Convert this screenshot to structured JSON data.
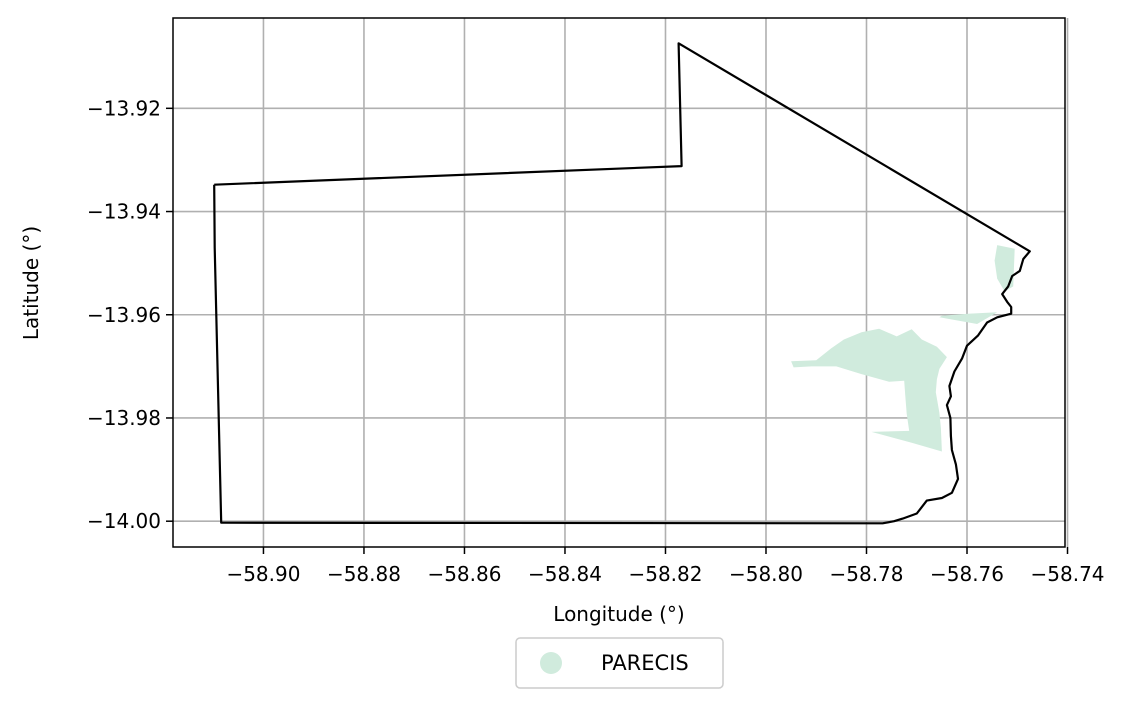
{
  "chart_data": {
    "type": "map",
    "xlabel": "Longitude (°)",
    "ylabel": "Latitude (°)",
    "xlim": [
      -58.918,
      -58.7405
    ],
    "ylim": [
      -14.005,
      -13.9025
    ],
    "grid": true,
    "x_ticks": [
      -58.9,
      -58.88,
      -58.86,
      -58.84,
      -58.82,
      -58.8,
      -58.78,
      -58.76,
      -58.74
    ],
    "x_tick_labels": [
      "−58.90",
      "−58.88",
      "−58.86",
      "−58.84",
      "−58.82",
      "−58.80",
      "−58.78",
      "−58.76",
      "−58.74"
    ],
    "y_ticks": [
      -13.92,
      -13.94,
      -13.96,
      -13.98,
      -14.0
    ],
    "y_tick_labels": [
      "−13.92",
      "−13.94",
      "−13.96",
      "−13.98",
      "−14.00"
    ],
    "boundary": {
      "color": "#000000",
      "points": [
        [
          -58.9098,
          -13.9348
        ],
        [
          -58.8168,
          -13.9312
        ],
        [
          -58.8174,
          -13.9074
        ],
        [
          -58.7475,
          -13.9477
        ],
        [
          -58.7488,
          -13.9492
        ],
        [
          -58.7495,
          -13.9515
        ],
        [
          -58.751,
          -13.9525
        ],
        [
          -58.7518,
          -13.9545
        ],
        [
          -58.753,
          -13.956
        ],
        [
          -58.752,
          -13.9575
        ],
        [
          -58.7512,
          -13.9585
        ],
        [
          -58.7512,
          -13.9598
        ],
        [
          -58.754,
          -13.9605
        ],
        [
          -58.756,
          -13.9615
        ],
        [
          -58.7578,
          -13.964
        ],
        [
          -58.76,
          -13.966
        ],
        [
          -58.761,
          -13.9685
        ],
        [
          -58.7625,
          -13.971
        ],
        [
          -58.7635,
          -13.9738
        ],
        [
          -58.7632,
          -13.9758
        ],
        [
          -58.764,
          -13.9775
        ],
        [
          -58.7633,
          -13.98
        ],
        [
          -58.7632,
          -13.9835
        ],
        [
          -58.763,
          -13.9862
        ],
        [
          -58.7622,
          -13.989
        ],
        [
          -58.7618,
          -13.9918
        ],
        [
          -58.763,
          -13.9945
        ],
        [
          -58.765,
          -13.9955
        ],
        [
          -58.768,
          -13.996
        ],
        [
          -58.77,
          -13.9985
        ],
        [
          -58.7728,
          -13.9995
        ],
        [
          -58.7745,
          -14.0
        ],
        [
          -58.7768,
          -14.0004
        ],
        [
          -58.9084,
          -14.0003
        ],
        [
          -58.9097,
          -13.947
        ],
        [
          -58.9098,
          -13.9348
        ]
      ]
    },
    "series": [
      {
        "name": "PARECIS",
        "color": "#d0ebdd",
        "polygons": [
          [
            [
              -58.795,
              -13.969
            ],
            [
              -58.79,
              -13.9688
            ],
            [
              -58.787,
              -13.9665
            ],
            [
              -58.7845,
              -13.9648
            ],
            [
              -58.781,
              -13.9634
            ],
            [
              -58.7775,
              -13.9627
            ],
            [
              -58.774,
              -13.9642
            ],
            [
              -58.771,
              -13.9628
            ],
            [
              -58.769,
              -13.9648
            ],
            [
              -58.766,
              -13.9662
            ],
            [
              -58.764,
              -13.9682
            ],
            [
              -58.7655,
              -13.9705
            ],
            [
              -58.766,
              -13.9725
            ],
            [
              -58.7662,
              -13.975
            ],
            [
              -58.7655,
              -13.979
            ],
            [
              -58.7652,
              -13.982
            ],
            [
              -58.765,
              -13.9865
            ],
            [
              -58.771,
              -13.9848
            ],
            [
              -58.779,
              -13.9827
            ],
            [
              -58.7715,
              -13.9825
            ],
            [
              -58.772,
              -13.9792
            ],
            [
              -58.7723,
              -13.9755
            ],
            [
              -58.7725,
              -13.9728
            ],
            [
              -58.7755,
              -13.973
            ],
            [
              -58.781,
              -13.9715
            ],
            [
              -58.786,
              -13.97
            ],
            [
              -58.791,
              -13.97
            ],
            [
              -58.7945,
              -13.9702
            ]
          ],
          [
            [
              -58.7655,
              -13.9605
            ],
            [
              -58.758,
              -13.9618
            ],
            [
              -58.754,
              -13.9595
            ],
            [
              -58.7598,
              -13.9598
            ],
            [
              -58.765,
              -13.9602
            ]
          ],
          [
            [
              -58.754,
              -13.9465
            ],
            [
              -58.7505,
              -13.9472
            ],
            [
              -58.7508,
              -13.9545
            ],
            [
              -58.7525,
              -13.9555
            ],
            [
              -58.754,
              -13.953
            ],
            [
              -58.7545,
              -13.9495
            ]
          ]
        ]
      }
    ],
    "legend": {
      "position": "bottom-center",
      "entries": [
        "PARECIS"
      ]
    }
  }
}
